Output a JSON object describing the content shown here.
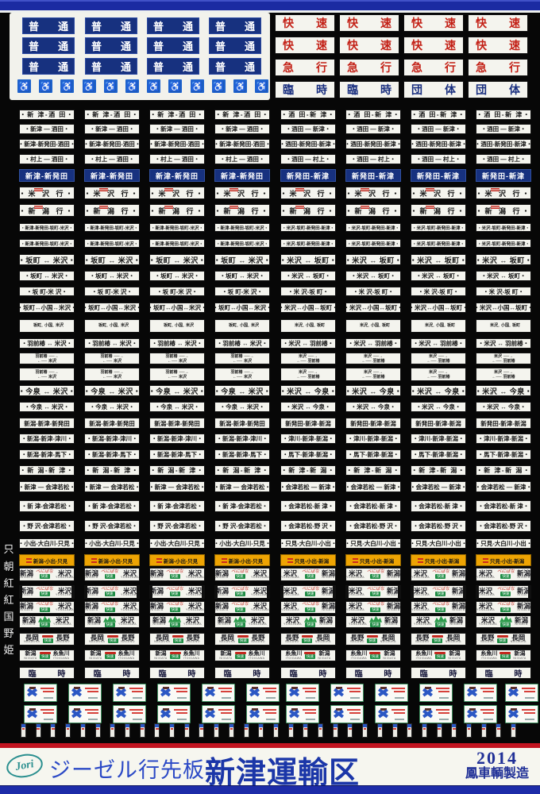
{
  "top_left": {
    "local_label": "普通",
    "wheelchair_icon": "♿"
  },
  "top_right_rows": [
    [
      "快速",
      "快速",
      "快速",
      "快速"
    ],
    [
      "快速",
      "快速",
      "快速",
      "快速"
    ],
    [
      "急行",
      "急行",
      "急行",
      "急行"
    ],
    [
      "臨時",
      "臨時",
      "団体",
      "団体"
    ]
  ],
  "plate_rows": [
    {
      "style": "sp",
      "l": "・新 津-酒 田・",
      "r": "・酒 田-新 津・"
    },
    {
      "style": "std",
      "l": "・新津 ― 酒田・",
      "r": "・酒田 ― 新津・"
    },
    {
      "style": "std",
      "l": "・新津-新発田-酒田・",
      "r": "・酒田-新発田-新津・"
    },
    {
      "style": "std",
      "l": "・村上 ― 酒田・",
      "r": "・酒田 ― 村上・"
    },
    {
      "style": "navy",
      "l": "新津-新発田",
      "r": "新発田-新津"
    },
    {
      "style": "redtag",
      "l": "・米 沢 行・",
      "r": "・米 沢 行・"
    },
    {
      "style": "redtag",
      "l": "・新 潟 行・",
      "r": "・新 潟 行・"
    },
    {
      "style": "tiny",
      "l": "・新津-新発田-坂町-米沢・",
      "r": "・米沢-坂町-新発田-新津・"
    },
    {
      "style": "tiny",
      "l": "・新津-新発田-坂町-米沢・",
      "r": "・米沢-坂町-新発田-新津・"
    },
    {
      "style": "bold",
      "l": "・坂町 ↔ 米沢・",
      "r": "・米沢 ↔ 坂町・"
    },
    {
      "style": "std",
      "l": "・坂町 ↔ 米沢・",
      "r": "・米沢 ↔ 坂町・"
    },
    {
      "style": "std",
      "l": "・坂 町-米 沢・",
      "r": "・米 沢-坂 町・"
    },
    {
      "style": "std",
      "l": "・坂町↔小国↔米沢・",
      "r": "・米沢↔小国↔坂町・"
    },
    {
      "style": "stack",
      "sl": [
        "坂町",
        "小国",
        "米沢"
      ],
      "sr": [
        "米沢",
        "小国",
        "坂町"
      ],
      "arrow": "↔"
    },
    {
      "style": "std",
      "l": "・羽前椿 ↔ 米沢・",
      "r": "・米沢 ↔ 羽前椿・"
    },
    {
      "style": "arr",
      "tl": "羽前椿",
      "bl": "米沢",
      "tr": "米沢",
      "br": "羽前椿",
      "ar": "──→",
      "al": "←──"
    },
    {
      "style": "arr",
      "tl": "羽前椿",
      "bl": "米沢",
      "tr": "米沢",
      "br": "羽前椿",
      "ar": "──→",
      "al": "←──"
    },
    {
      "style": "bold",
      "l": "・今泉 ↔ 米沢・",
      "r": "・米沢 ↔ 今泉・"
    },
    {
      "style": "std",
      "l": "・今泉 ↔ 米沢・",
      "r": "・米沢 ↔ 今泉・"
    },
    {
      "style": "std",
      "l": "新潟-新津-新発田",
      "r": "新発田-新津-新潟"
    },
    {
      "style": "std",
      "l": "・新潟-新津-津川・",
      "r": "・津川-新津-新潟・"
    },
    {
      "style": "std",
      "l": "・新潟-新津-馬下・",
      "r": "・馬下-新津-新潟・"
    },
    {
      "style": "sp",
      "l": "・新 潟-新 津・",
      "r": "・新 津-新 潟・"
    },
    {
      "style": "std",
      "l": "・新津 ― 会津若松・",
      "r": "・会津若松 ― 新津・"
    },
    {
      "style": "std",
      "l": "・新 津-会津若松・",
      "r": "・会津若松-新 津・"
    },
    {
      "style": "std",
      "l": "・野 沢-会津若松・",
      "r": "・会津若松-野 沢・"
    },
    {
      "style": "std",
      "l": "・小出-大白川-只見・",
      "r": "・只見-大白川-小出・"
    },
    {
      "style": "orange",
      "l": "新潟-小出-只見",
      "r": "只見-小出-新潟"
    }
  ],
  "illus_rows": [
    {
      "type": "benibana",
      "l1": "新潟",
      "l2": "米沢",
      "r1": "米沢",
      "r2": "新潟",
      "rl1": "NIIGATA",
      "rl2": "YONEZAWA",
      "rr1": "YONEZAWA",
      "rr2": "NIIGATA",
      "tag": "べにばな",
      "box": "快速"
    },
    {
      "type": "bars",
      "l1": "新潟",
      "l2": "米沢",
      "r1": "米沢",
      "r2": "新潟",
      "rl1": "NIIGATA",
      "rl2": "YONEZAWA",
      "rr1": "YONEZAWA",
      "rr2": "NIIGATA",
      "tag": "べにばな",
      "box": "快速"
    },
    {
      "type": "thin",
      "l1": "新潟",
      "l2": "米沢",
      "r1": "米沢",
      "r2": "新潟",
      "rl1": "NIIGATA",
      "rl2": "YONEZAWA",
      "rr1": "YONEZAWA",
      "rr2": "NIIGATA",
      "tag": "べにばな",
      "box": "快速"
    },
    {
      "type": "mountain",
      "l1": "新潟",
      "l2": "米沢",
      "r1": "米沢",
      "r2": "新潟",
      "rl1": "NIIGATA",
      "rl2": "YONEZAWA",
      "rr1": "YONEZAWA",
      "rr2": "NIIGATA",
      "tag": "",
      "box": "快速"
    },
    {
      "type": "benibana",
      "l1": "長岡",
      "l2": "長野",
      "r1": "長野",
      "r2": "長岡",
      "rl1": "NAGAOKA",
      "rl2": "NAGANO",
      "rr1": "NAGANO",
      "rr2": "NAGAOKA",
      "tag": "",
      "box": "快速"
    },
    {
      "type": "itoigawa",
      "l1": "新潟",
      "l2": "糸魚川",
      "r1": "糸魚川",
      "r2": "新潟",
      "rl1": "NIIGATA",
      "rl2": "ITOIGAWA",
      "rr1": "ITOIGAWA",
      "rr2": "NIIGATA",
      "tag": "",
      "box": "快速"
    }
  ],
  "rinji_label": "臨 時",
  "side_labels": [
    "只",
    "朝",
    "紅",
    "紅",
    "国",
    "野",
    "姫"
  ],
  "footer": {
    "logo": "Jori",
    "series": "ジーゼル行先板",
    "depot": "新津運輸区",
    "year": "2014",
    "maker": "鳳車輌製造"
  }
}
